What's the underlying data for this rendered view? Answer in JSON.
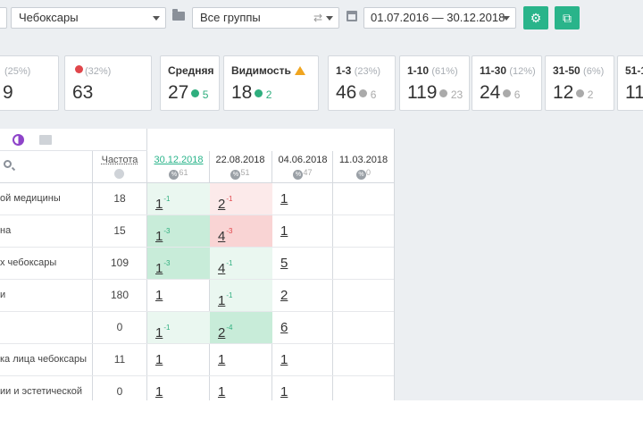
{
  "filters": {
    "region": "Чебоксары",
    "group": "Все группы",
    "date_range": "01.07.2016 — 30.12.2018",
    "settings_icon": "gear-icon",
    "export_icon": "export-icon"
  },
  "cards": [
    {
      "label": "",
      "pct": "(25%)",
      "value": "9",
      "delta": ""
    },
    {
      "label": "",
      "pct": "(32%)",
      "value": "63",
      "delta": ""
    },
    {
      "label": "Средняя",
      "pct": "",
      "value": "27",
      "delta": "5"
    },
    {
      "label": "Видимость",
      "pct": "",
      "value": "18",
      "delta": "2"
    },
    {
      "label": "1-3",
      "pct": "(23%)",
      "value": "46",
      "delta": "6"
    },
    {
      "label": "1-10",
      "pct": "(61%)",
      "value": "119",
      "delta": "23"
    },
    {
      "label": "11-30",
      "pct": "(12%)",
      "value": "24",
      "delta": "6"
    },
    {
      "label": "31-50",
      "pct": "(6%)",
      "value": "12",
      "delta": "2"
    },
    {
      "label": "51-1",
      "pct": "",
      "value": "11",
      "delta": ""
    }
  ],
  "table": {
    "freq_header": "Частота",
    "dates": [
      {
        "date": "30.12.2018",
        "count": "61"
      },
      {
        "date": "22.08.2018",
        "count": "51"
      },
      {
        "date": "04.06.2018",
        "count": "47"
      },
      {
        "date": "11.03.2018",
        "count": "0"
      }
    ],
    "rows": [
      {
        "keyword": "ой медицины",
        "freq": "18",
        "cells": [
          {
            "pos": "1",
            "delta": "-1",
            "dir": "up",
            "bg": "g1"
          },
          {
            "pos": "2",
            "delta": "-1",
            "dir": "dn",
            "bg": "r1"
          },
          {
            "pos": "1",
            "delta": "",
            "dir": "",
            "bg": ""
          }
        ]
      },
      {
        "keyword": "на",
        "freq": "15",
        "cells": [
          {
            "pos": "1",
            "delta": "-3",
            "dir": "up",
            "bg": "g2"
          },
          {
            "pos": "4",
            "delta": "-3",
            "dir": "dn",
            "bg": "r2"
          },
          {
            "pos": "1",
            "delta": "",
            "dir": "",
            "bg": ""
          }
        ]
      },
      {
        "keyword": "х чебоксары",
        "freq": "109",
        "cells": [
          {
            "pos": "1",
            "delta": "-3",
            "dir": "up",
            "bg": "g2"
          },
          {
            "pos": "4",
            "delta": "-1",
            "dir": "up",
            "bg": "g1"
          },
          {
            "pos": "5",
            "delta": "",
            "dir": "",
            "bg": ""
          }
        ]
      },
      {
        "keyword": "и",
        "freq": "180",
        "cells": [
          {
            "pos": "1",
            "delta": "",
            "dir": "",
            "bg": ""
          },
          {
            "pos": "1",
            "delta": "-1",
            "dir": "up",
            "bg": "g1"
          },
          {
            "pos": "2",
            "delta": "",
            "dir": "",
            "bg": ""
          }
        ]
      },
      {
        "keyword": "",
        "freq": "0",
        "cells": [
          {
            "pos": "1",
            "delta": "-1",
            "dir": "up",
            "bg": "g1"
          },
          {
            "pos": "2",
            "delta": "-4",
            "dir": "up",
            "bg": "g2"
          },
          {
            "pos": "6",
            "delta": "",
            "dir": "",
            "bg": ""
          }
        ]
      },
      {
        "keyword": "ка лица чебоксары",
        "freq": "11",
        "cells": [
          {
            "pos": "1",
            "delta": "",
            "dir": "",
            "bg": ""
          },
          {
            "pos": "1",
            "delta": "",
            "dir": "",
            "bg": ""
          },
          {
            "pos": "1",
            "delta": "",
            "dir": "",
            "bg": ""
          }
        ]
      },
      {
        "keyword": "ии и эстетической",
        "freq": "0",
        "cells": [
          {
            "pos": "1",
            "delta": "",
            "dir": "",
            "bg": ""
          },
          {
            "pos": "1",
            "delta": "",
            "dir": "",
            "bg": ""
          },
          {
            "pos": "1",
            "delta": "",
            "dir": "",
            "bg": ""
          }
        ]
      }
    ]
  },
  "colors": {
    "accent": "#29b48a",
    "up": "#2fae7e",
    "down": "#e0464b",
    "warning": "#f0a520"
  }
}
